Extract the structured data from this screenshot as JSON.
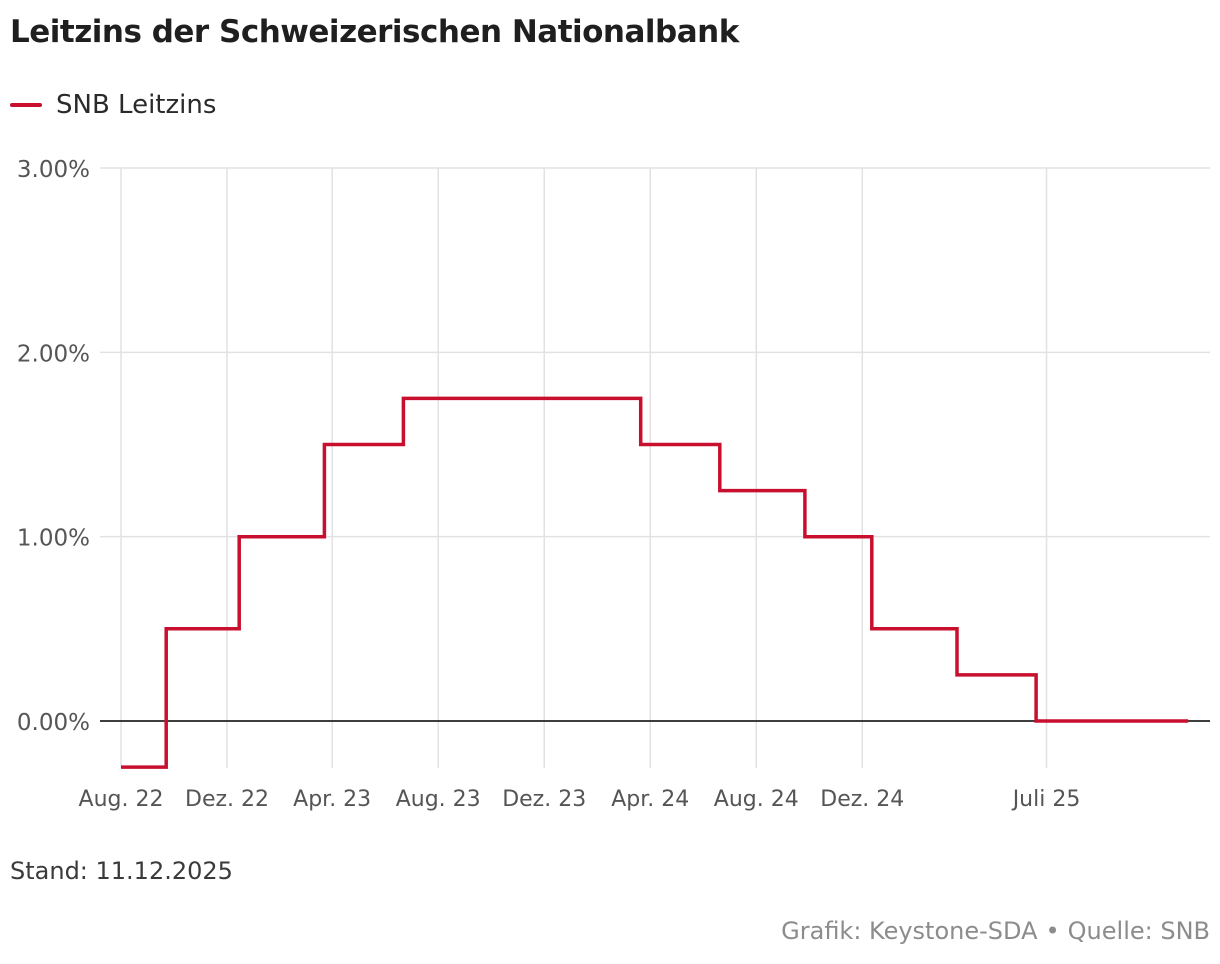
{
  "title": "Leitzins der Schweizerischen Nationalbank",
  "stand": "Stand: 11.12.2025",
  "credit": {
    "grafik": "Grafik: Keystone-SDA",
    "separator": "•",
    "quelle": "Quelle: SNB"
  },
  "colors": {
    "series": "#c8102e",
    "grid": "#e2e2e2",
    "zero_line": "#222222",
    "tick_text": "#555555"
  },
  "chart_data": {
    "type": "line",
    "step": true,
    "title": "Leitzins der Schweizerischen Nationalbank",
    "xlabel": "",
    "ylabel": "",
    "legend_position": "top-left",
    "grid": true,
    "xlim": [
      "2022-08-01",
      "2025-12-20"
    ],
    "ylim": [
      -0.25,
      3.0
    ],
    "y_ticks": [
      0,
      1,
      2,
      3
    ],
    "y_tick_labels": [
      "0.00%",
      "1.00%",
      "2.00%",
      "3.00%"
    ],
    "x_ticks": [
      "2022-08-01",
      "2022-12-01",
      "2023-04-01",
      "2023-08-01",
      "2023-12-01",
      "2024-04-01",
      "2024-08-01",
      "2024-12-01",
      "2025-07-01"
    ],
    "x_tick_labels": [
      "Aug. 22",
      "Dez. 22",
      "Apr. 23",
      "Aug. 23",
      "Dez. 23",
      "Apr. 24",
      "Aug. 24",
      "Dez. 24",
      "Juli 25"
    ],
    "series": [
      {
        "name": "SNB Leitzins",
        "color": "#c8102e",
        "points": [
          {
            "date": "2022-08-01",
            "value": -0.25
          },
          {
            "date": "2022-09-22",
            "value": 0.5
          },
          {
            "date": "2022-12-15",
            "value": 1.0
          },
          {
            "date": "2023-03-23",
            "value": 1.5
          },
          {
            "date": "2023-06-22",
            "value": 1.75
          },
          {
            "date": "2024-03-21",
            "value": 1.5
          },
          {
            "date": "2024-06-20",
            "value": 1.25
          },
          {
            "date": "2024-09-26",
            "value": 1.0
          },
          {
            "date": "2024-12-12",
            "value": 0.5
          },
          {
            "date": "2025-03-20",
            "value": 0.25
          },
          {
            "date": "2025-06-19",
            "value": 0.0
          },
          {
            "date": "2025-12-11",
            "value": 0.0
          }
        ]
      }
    ]
  }
}
